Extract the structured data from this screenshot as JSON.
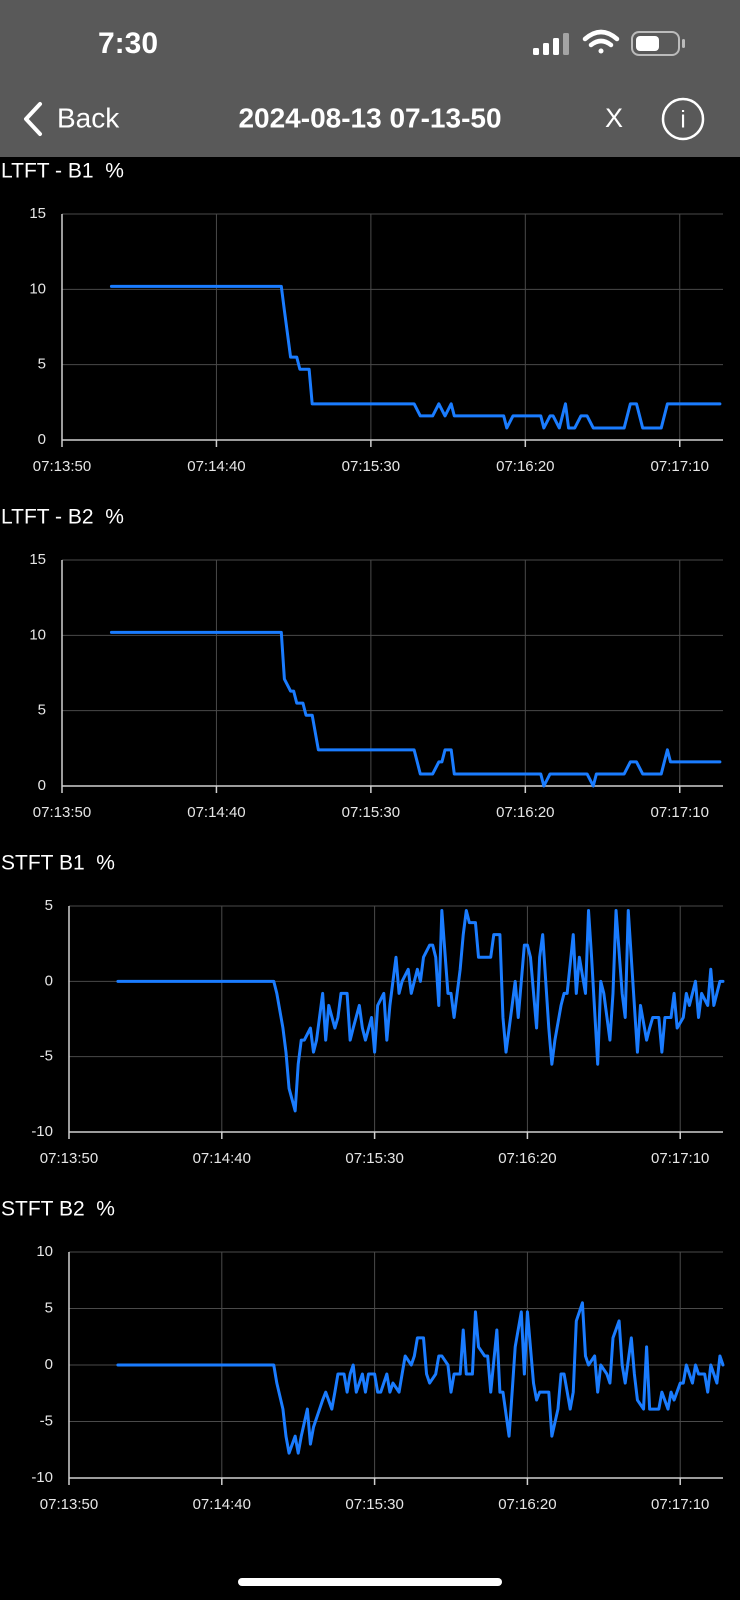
{
  "status_bar": {
    "time": "7:30"
  },
  "nav": {
    "back": "Back",
    "title": "2024-08-13 07-13-50",
    "close": "X",
    "info": "i"
  },
  "chart_data": [
    {
      "type": "line",
      "title": "LTFT - B1  %",
      "color": "#1a7cff",
      "grid": true,
      "xlim": [
        "07:13:50",
        "07:17:24"
      ],
      "xticks": [
        "07:13:50",
        "07:14:40",
        "07:15:30",
        "07:16:20",
        "07:17:10"
      ],
      "ylim": [
        0,
        15
      ],
      "yticks": [
        0,
        5,
        10,
        15
      ],
      "x": [
        "07:14:06",
        "07:15:01",
        "07:15:02",
        "07:15:04",
        "07:15:06",
        "07:15:07",
        "07:15:10",
        "07:15:11",
        "07:15:44",
        "07:15:46",
        "07:15:50",
        "07:15:52",
        "07:15:54",
        "07:15:56",
        "07:15:57",
        "07:16:13",
        "07:16:14",
        "07:16:16",
        "07:16:25",
        "07:16:26",
        "07:16:28",
        "07:16:29",
        "07:16:31",
        "07:16:33",
        "07:16:34",
        "07:16:36",
        "07:16:38",
        "07:16:40",
        "07:16:42",
        "07:16:52",
        "07:16:54",
        "07:16:56",
        "07:16:58",
        "07:17:04",
        "07:17:06",
        "07:17:23"
      ],
      "values": [
        10.2,
        10.2,
        8.6,
        5.5,
        5.5,
        4.7,
        4.7,
        2.4,
        2.4,
        1.6,
        1.6,
        2.4,
        1.6,
        2.4,
        1.6,
        1.6,
        0.8,
        1.6,
        1.6,
        0.8,
        1.6,
        1.6,
        0.8,
        2.4,
        0.8,
        0.8,
        1.6,
        1.6,
        0.8,
        0.8,
        2.4,
        2.4,
        0.8,
        0.8,
        2.4,
        2.4
      ]
    },
    {
      "type": "line",
      "title": "LTFT - B2  %",
      "color": "#1a7cff",
      "grid": true,
      "xlim": [
        "07:13:50",
        "07:17:24"
      ],
      "xticks": [
        "07:13:50",
        "07:14:40",
        "07:15:30",
        "07:16:20",
        "07:17:10"
      ],
      "ylim": [
        0,
        15
      ],
      "yticks": [
        0,
        5,
        10,
        15
      ],
      "x": [
        "07:14:06",
        "07:15:01",
        "07:15:02",
        "07:15:04",
        "07:15:05",
        "07:15:06",
        "07:15:08",
        "07:15:09",
        "07:15:11",
        "07:15:13",
        "07:15:44",
        "07:15:46",
        "07:15:50",
        "07:15:52",
        "07:15:53",
        "07:15:54",
        "07:15:56",
        "07:15:57",
        "07:16:25",
        "07:16:26",
        "07:16:28",
        "07:16:40",
        "07:16:42",
        "07:16:43",
        "07:16:52",
        "07:16:54",
        "07:16:56",
        "07:16:58",
        "07:17:04",
        "07:17:06",
        "07:17:07",
        "07:17:23"
      ],
      "values": [
        10.2,
        10.2,
        7.1,
        6.3,
        6.3,
        5.5,
        5.5,
        4.7,
        4.7,
        2.4,
        2.4,
        0.8,
        0.8,
        1.6,
        1.6,
        2.4,
        2.4,
        0.8,
        0.8,
        0,
        0.8,
        0.8,
        0,
        0.8,
        0.8,
        1.6,
        1.6,
        0.8,
        0.8,
        2.4,
        1.6,
        1.6
      ]
    },
    {
      "type": "line",
      "title": "STFT B1  %",
      "color": "#1a7cff",
      "grid": true,
      "xlim": [
        "07:13:50",
        "07:17:24"
      ],
      "xticks": [
        "07:13:50",
        "07:14:40",
        "07:15:30",
        "07:16:20",
        "07:17:10"
      ],
      "ylim": [
        -10,
        5
      ],
      "yticks": [
        -10,
        -5,
        0,
        5
      ],
      "x": [
        "07:14:06",
        "07:14:57",
        "07:14:58",
        "07:15:00",
        "07:15:01",
        "07:15:02",
        "07:15:04",
        "07:15:05",
        "07:15:06",
        "07:15:07",
        "07:15:09",
        "07:15:10",
        "07:15:11",
        "07:15:13",
        "07:15:14",
        "07:15:15",
        "07:15:17",
        "07:15:18",
        "07:15:19",
        "07:15:21",
        "07:15:22",
        "07:15:23",
        "07:15:25",
        "07:15:26",
        "07:15:27",
        "07:15:29",
        "07:15:30",
        "07:15:31",
        "07:15:33",
        "07:15:34",
        "07:15:35",
        "07:15:37",
        "07:15:38",
        "07:15:39",
        "07:15:41",
        "07:15:42",
        "07:15:44",
        "07:15:45",
        "07:15:46",
        "07:15:48",
        "07:15:49",
        "07:15:50",
        "07:15:51",
        "07:15:52",
        "07:15:54",
        "07:15:55",
        "07:15:56",
        "07:15:58",
        "07:15:59",
        "07:16:00",
        "07:16:01",
        "07:16:03",
        "07:16:04",
        "07:16:07",
        "07:16:08",
        "07:16:09",
        "07:16:11",
        "07:16:12",
        "07:16:13",
        "07:16:15",
        "07:16:16",
        "07:16:17",
        "07:16:19",
        "07:16:20",
        "07:16:21",
        "07:16:23",
        "07:16:24",
        "07:16:25",
        "07:16:27",
        "07:16:28",
        "07:16:29",
        "07:16:31",
        "07:16:32",
        "07:16:33",
        "07:16:35",
        "07:16:36",
        "07:16:37",
        "07:16:39",
        "07:16:40",
        "07:16:41",
        "07:16:43",
        "07:16:44",
        "07:16:45",
        "07:16:47",
        "07:16:48",
        "07:16:49",
        "07:16:51",
        "07:16:52",
        "07:16:53",
        "07:16:55",
        "07:16:56",
        "07:16:57",
        "07:16:59",
        "07:17:00",
        "07:17:01",
        "07:17:03",
        "07:17:04",
        "07:17:05",
        "07:17:07",
        "07:17:08",
        "07:17:09",
        "07:17:11",
        "07:17:12",
        "07:17:13",
        "07:17:15",
        "07:17:16",
        "07:17:17",
        "07:17:19",
        "07:17:20",
        "07:17:21",
        "07:17:23",
        "07:17:24"
      ],
      "values": [
        0,
        0,
        -0.8,
        -3.1,
        -4.7,
        -7.1,
        -8.6,
        -5.5,
        -3.9,
        -3.9,
        -3.1,
        -4.7,
        -3.9,
        -0.8,
        -3.9,
        -1.6,
        -3.1,
        -2.4,
        -0.8,
        -0.8,
        -3.9,
        -3.1,
        -1.6,
        -3.1,
        -3.9,
        -2.4,
        -4.7,
        -1.6,
        -0.8,
        -3.9,
        -1.6,
        1.6,
        -0.8,
        0,
        0.8,
        -0.8,
        0.8,
        0,
        1.6,
        2.4,
        2.4,
        1.6,
        -1.6,
        4.7,
        -0.8,
        -0.8,
        -2.4,
        0.8,
        3.1,
        4.7,
        3.9,
        3.9,
        1.6,
        1.6,
        1.6,
        3.1,
        3.1,
        -2.4,
        -4.7,
        -1.6,
        0,
        -2.4,
        2.4,
        2.4,
        1.6,
        -3.1,
        1.6,
        3.1,
        -3.1,
        -5.5,
        -3.9,
        -1.6,
        -0.8,
        -0.8,
        3.1,
        -0.8,
        1.6,
        -0.8,
        4.7,
        1.6,
        -5.5,
        0,
        -0.8,
        -3.9,
        -0.8,
        4.7,
        -0.8,
        -2.4,
        4.7,
        -1.6,
        -4.7,
        -1.6,
        -3.9,
        -3.1,
        -2.4,
        -2.4,
        -4.7,
        -2.4,
        -2.4,
        -0.8,
        -3.1,
        -2.4,
        -0.8,
        -1.6,
        0,
        -2.4,
        -0.8,
        -1.6,
        0.8,
        -1.6,
        0,
        0
      ]
    },
    {
      "type": "line",
      "title": "STFT B2  %",
      "color": "#1a7cff",
      "grid": true,
      "xlim": [
        "07:13:50",
        "07:17:24"
      ],
      "xticks": [
        "07:13:50",
        "07:14:40",
        "07:15:30",
        "07:16:20",
        "07:17:10"
      ],
      "ylim": [
        -10,
        10
      ],
      "yticks": [
        -10,
        -5,
        0,
        5,
        10
      ],
      "x": [
        "07:14:06",
        "07:14:57",
        "07:14:58",
        "07:15:00",
        "07:15:01",
        "07:15:02",
        "07:15:04",
        "07:15:05",
        "07:15:06",
        "07:15:08",
        "07:15:09",
        "07:15:10",
        "07:15:12",
        "07:15:13",
        "07:15:14",
        "07:15:16",
        "07:15:17",
        "07:15:18",
        "07:15:20",
        "07:15:21",
        "07:15:22",
        "07:15:23",
        "07:15:24",
        "07:15:26",
        "07:15:27",
        "07:15:28",
        "07:15:30",
        "07:15:31",
        "07:15:32",
        "07:15:34",
        "07:15:35",
        "07:15:36",
        "07:15:38",
        "07:15:39",
        "07:15:40",
        "07:15:42",
        "07:15:43",
        "07:15:44",
        "07:15:46",
        "07:15:47",
        "07:15:48",
        "07:15:50",
        "07:15:51",
        "07:15:52",
        "07:15:54",
        "07:15:55",
        "07:15:56",
        "07:15:58",
        "07:15:59",
        "07:16:00",
        "07:16:02",
        "07:16:03",
        "07:16:04",
        "07:16:06",
        "07:16:07",
        "07:16:08",
        "07:16:10",
        "07:16:11",
        "07:16:12",
        "07:16:14",
        "07:16:15",
        "07:16:16",
        "07:16:18",
        "07:16:19",
        "07:16:20",
        "07:16:22",
        "07:16:23",
        "07:16:24",
        "07:16:26",
        "07:16:27",
        "07:16:28",
        "07:16:30",
        "07:16:31",
        "07:16:32",
        "07:16:34",
        "07:16:35",
        "07:16:36",
        "07:16:38",
        "07:16:39",
        "07:16:40",
        "07:16:42",
        "07:16:43",
        "07:16:44",
        "07:16:46",
        "07:16:47",
        "07:16:48",
        "07:16:50",
        "07:16:51",
        "07:16:52",
        "07:16:54",
        "07:16:55",
        "07:16:56",
        "07:16:58",
        "07:16:59",
        "07:17:00",
        "07:17:02",
        "07:17:03",
        "07:17:04",
        "07:17:06",
        "07:17:07",
        "07:17:08",
        "07:17:10",
        "07:17:11",
        "07:17:12",
        "07:17:14",
        "07:17:15",
        "07:17:16",
        "07:17:18",
        "07:17:19",
        "07:17:20",
        "07:17:22",
        "07:17:23",
        "07:17:24"
      ],
      "values": [
        0,
        0,
        -1.6,
        -3.9,
        -6.3,
        -7.8,
        -6.3,
        -7.8,
        -6.3,
        -3.9,
        -7,
        -5.5,
        -3.9,
        -3.1,
        -2.4,
        -3.9,
        -2.4,
        -0.8,
        -0.8,
        -2.4,
        -0.8,
        0,
        -2.4,
        -0.8,
        -2.4,
        -0.8,
        -0.8,
        -2.4,
        -2.4,
        -0.8,
        -2.4,
        -1.6,
        -2.4,
        -0.8,
        0.8,
        0,
        0.8,
        2.4,
        2.4,
        -0.8,
        -1.6,
        -0.8,
        0.8,
        0.8,
        0,
        -2.4,
        -0.8,
        -0.8,
        3.1,
        -0.8,
        -0.8,
        4.7,
        1.6,
        0.8,
        0.8,
        -2.4,
        3.1,
        -2.4,
        -2.4,
        -6.3,
        -2.4,
        1.6,
        4.7,
        -0.8,
        4.7,
        -1.6,
        -3.1,
        -2.4,
        -2.4,
        -2.4,
        -6.3,
        -3.9,
        -0.8,
        -0.8,
        -3.9,
        -2.4,
        3.9,
        5.5,
        0.8,
        0,
        0.8,
        -2.4,
        0,
        -0.8,
        -1.6,
        2.4,
        3.9,
        0,
        -1.6,
        2.4,
        -0.8,
        -3.1,
        -3.9,
        1.6,
        -3.9,
        -3.9,
        -3.9,
        -2.4,
        -3.9,
        -2.4,
        -3.1,
        -1.6,
        -1.6,
        0,
        -1.6,
        0,
        -0.8,
        -0.8,
        -2.4,
        0,
        -1.6,
        0.8,
        0
      ]
    }
  ]
}
